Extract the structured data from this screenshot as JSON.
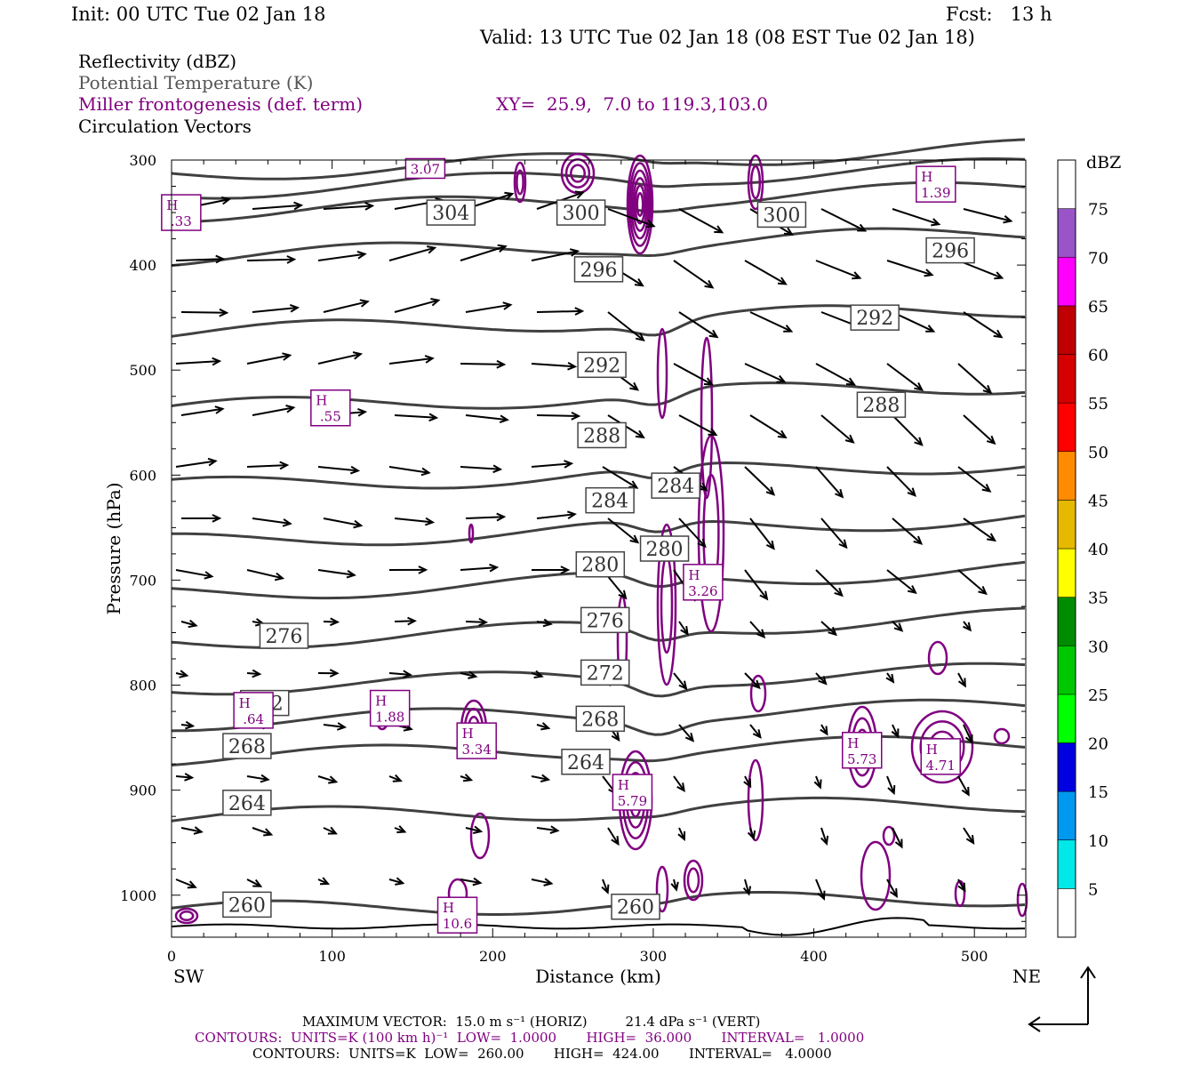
{
  "header": {
    "init": "Init: 00 UTC Tue 02 Jan 18",
    "fcst": "Fcst:   13 h",
    "valid": "Valid: 13 UTC Tue 02 Jan 18 (08 EST Tue 02 Jan 18)",
    "field1": "Reflectivity (dBZ)",
    "field2": "Potential Temperature (K)",
    "field3": "Miller frontogenesis (def. term)",
    "field4": "Circulation Vectors",
    "xy": "XY=  25.9,  7.0 to 119.3,103.0"
  },
  "colors": {
    "theta": "#404040",
    "fronto": "#800080",
    "vector": "#000000"
  },
  "chart_data": {
    "type": "cross-section",
    "xlabel": "Distance (km)",
    "ylabel": "Pressure (hPa)",
    "x_ticks": [
      0,
      100,
      200,
      300,
      400,
      500
    ],
    "y_ticks": [
      300,
      400,
      500,
      600,
      700,
      800,
      900,
      1000
    ],
    "xlim": [
      0,
      532
    ],
    "ylim": [
      1040,
      300
    ],
    "left_end_label": "SW",
    "right_end_label": "NE",
    "colorbar": {
      "unit": "dBZ",
      "levels": [
        5,
        10,
        15,
        20,
        25,
        30,
        35,
        40,
        45,
        50,
        55,
        60,
        65,
        70,
        75
      ],
      "colors": [
        "#ffffff",
        "#00e8e8",
        "#0099f0",
        "#0000e0",
        "#00ff00",
        "#00c800",
        "#008c00",
        "#ffff00",
        "#e6b800",
        "#ff8c00",
        "#ff0000",
        "#d60000",
        "#c00000",
        "#ff00ff",
        "#9955c8",
        "#ffffff"
      ]
    },
    "theta_contour_labels": [
      {
        "text": "304",
        "x": 174,
        "p": 350
      },
      {
        "text": "300",
        "x": 255,
        "p": 350
      },
      {
        "text": "300",
        "x": 380,
        "p": 352
      },
      {
        "text": "296",
        "x": 266,
        "p": 404
      },
      {
        "text": "296",
        "x": 485,
        "p": 386
      },
      {
        "text": "292",
        "x": 268,
        "p": 495
      },
      {
        "text": "292",
        "x": 438,
        "p": 450
      },
      {
        "text": "288",
        "x": 268,
        "p": 562
      },
      {
        "text": "288",
        "x": 442,
        "p": 533
      },
      {
        "text": "284",
        "x": 273,
        "p": 624
      },
      {
        "text": "284",
        "x": 314,
        "p": 610
      },
      {
        "text": "280",
        "x": 307,
        "p": 670
      },
      {
        "text": "280",
        "x": 267,
        "p": 685
      },
      {
        "text": "276",
        "x": 270,
        "p": 738
      },
      {
        "text": "276",
        "x": 70,
        "p": 753
      },
      {
        "text": "272",
        "x": 270,
        "p": 788
      },
      {
        "text": "272",
        "x": 58,
        "p": 817
      },
      {
        "text": "268",
        "x": 267,
        "p": 832
      },
      {
        "text": "268",
        "x": 47,
        "p": 858
      },
      {
        "text": "264",
        "x": 258,
        "p": 873
      },
      {
        "text": "264",
        "x": 47,
        "p": 912
      },
      {
        "text": "260",
        "x": 47,
        "p": 1009
      },
      {
        "text": "260",
        "x": 289,
        "p": 1011
      }
    ],
    "fronto_max_labels": [
      {
        "letter": "H",
        "value": ".33",
        "x": 6,
        "p": 350
      },
      {
        "letter": "",
        "value": "3.07",
        "x": 158,
        "p": 308
      },
      {
        "letter": "H",
        "value": "1.39",
        "x": 476,
        "p": 323
      },
      {
        "letter": "H",
        "value": ".55",
        "x": 99,
        "p": 536
      },
      {
        "letter": "H",
        "value": "3.26",
        "x": 331,
        "p": 702
      },
      {
        "letter": "H",
        "value": ".64",
        "x": 51,
        "p": 824
      },
      {
        "letter": "H",
        "value": "1.88",
        "x": 136,
        "p": 822
      },
      {
        "letter": "H",
        "value": "3.34",
        "x": 190,
        "p": 853
      },
      {
        "letter": "H",
        "value": "5.73",
        "x": 430,
        "p": 862
      },
      {
        "letter": "H",
        "value": "4.71",
        "x": 479,
        "p": 868
      },
      {
        "letter": "H",
        "value": "5.79",
        "x": 287,
        "p": 902
      },
      {
        "letter": "H",
        "value": "10.6",
        "x": 178,
        "p": 1019
      }
    ]
  },
  "footer": {
    "line1": "MAXIMUM VECTOR:  15.0 m s⁻¹ (HORIZ)         21.4 dPa s⁻¹ (VERT)",
    "line2": "CONTOURS:  UNITS=K (100 km h)⁻¹  LOW=  1.0000       HIGH=  36.000       INTERVAL=   1.0000",
    "line3": "CONTOURS:  UNITS=K  LOW=  260.00       HIGH=  424.00       INTERVAL=   4.0000"
  }
}
